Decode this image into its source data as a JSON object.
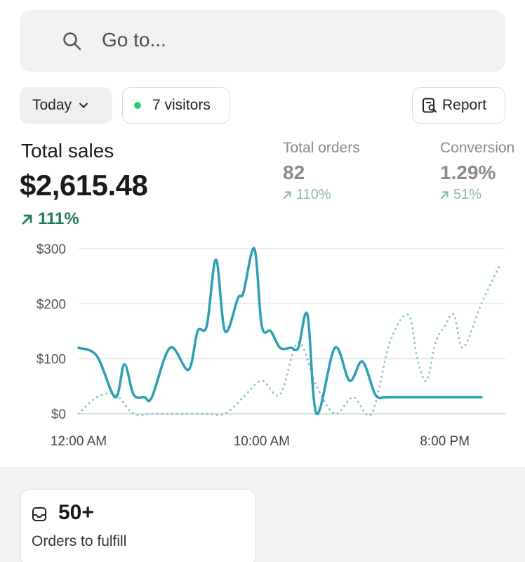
{
  "search": {
    "placeholder": "Go to..."
  },
  "filters": {
    "period": "Today",
    "visitors": "7 visitors",
    "report": "Report"
  },
  "colors": {
    "accent": "#2b9fb3",
    "positive": "#1f7a5a",
    "live_dot": "#2ecc71"
  },
  "metrics": {
    "total_sales": {
      "label": "Total sales",
      "value": "$2,615.48",
      "change": "111%"
    },
    "total_orders": {
      "label": "Total orders",
      "value": "82",
      "change": "110%"
    },
    "conversion": {
      "label": "Conversion",
      "value": "1.29%",
      "change": "51%"
    }
  },
  "chart_data": {
    "type": "line",
    "y_tick_labels": [
      "$300",
      "$200",
      "$100",
      "$0"
    ],
    "y_ticks": [
      300,
      200,
      100,
      0
    ],
    "ylim": [
      0,
      300
    ],
    "x_tick_labels": [
      "12:00 AM",
      "10:00 AM",
      "8:00 PM"
    ],
    "x_tick_hours": [
      0,
      10,
      20
    ],
    "xlim": [
      0,
      23
    ],
    "grid": true,
    "series": [
      {
        "style": "solid",
        "color": "#2b9fb3",
        "x": [
          0,
          1,
          2,
          2.5,
          3,
          3.6,
          4,
          5,
          6,
          6.5,
          7,
          7.5,
          8,
          8.7,
          9,
          9.6,
          10,
          10.5,
          11,
          11.6,
          12,
          12.5,
          13,
          14,
          14.8,
          15.5,
          16.2,
          16.7,
          17,
          18,
          18.5,
          19,
          20,
          20.5,
          21,
          22
        ],
        "y": [
          120,
          105,
          30,
          90,
          35,
          30,
          30,
          120,
          80,
          150,
          160,
          280,
          150,
          210,
          220,
          300,
          160,
          150,
          120,
          120,
          120,
          180,
          0,
          120,
          60,
          95,
          35,
          30,
          30,
          30,
          30,
          30,
          30,
          30,
          30,
          30
        ]
      },
      {
        "style": "dotted",
        "color": "#8cc3cd",
        "x": [
          0,
          1,
          2,
          3,
          4,
          5,
          6,
          7,
          8,
          9,
          10,
          11,
          12,
          13,
          14,
          15,
          16,
          17,
          18,
          18.5,
          19,
          19.5,
          20,
          20.5,
          21,
          22,
          23
        ],
        "y": [
          0,
          30,
          35,
          0,
          0,
          0,
          0,
          0,
          0,
          30,
          60,
          35,
          130,
          50,
          0,
          30,
          0,
          130,
          180,
          100,
          60,
          130,
          160,
          180,
          120,
          200,
          270
        ]
      }
    ]
  },
  "fulfill_card": {
    "value": "50+",
    "label": "Orders to fulfill"
  }
}
